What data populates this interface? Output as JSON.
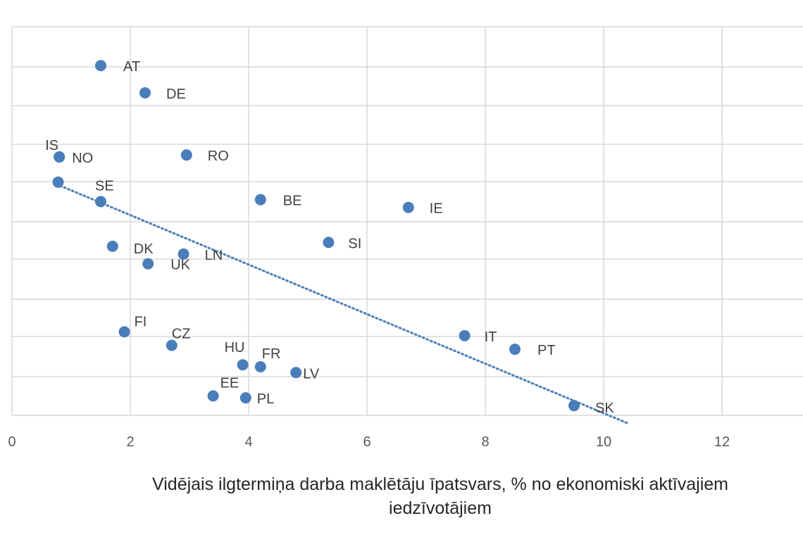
{
  "chart_data": {
    "type": "scatter",
    "title": "",
    "xlabel_line1": "Vidējais ilgtermiņa darba maklētāju īpatsvars, % no ekonomiski aktīvajiem",
    "xlabel_line2": "iedzīvotājiem",
    "ylabel": "",
    "xlim": [
      0,
      13.4
    ],
    "x_ticks": [
      0,
      2,
      4,
      6,
      8,
      10,
      12
    ],
    "grid": "on",
    "legend": "none",
    "point_color": "#4a7ebb",
    "trend_color": "#4a7ebb",
    "trendline": {
      "style": "dotted",
      "x": [
        0.75,
        10.4
      ],
      "y": [
        0.595,
        -0.02
      ]
    },
    "points": [
      {
        "label": "AT",
        "x": 1.5,
        "y": 0.9
      },
      {
        "label": "DE",
        "x": 2.25,
        "y": 0.83
      },
      {
        "label": "IS",
        "x": 0.8,
        "y": 0.665
      },
      {
        "label": "NO",
        "x": 0.8,
        "y": 0.665
      },
      {
        "label": "RO",
        "x": 2.95,
        "y": 0.67
      },
      {
        "label": "",
        "x": 0.78,
        "y": 0.6
      },
      {
        "label": "SE",
        "x": 1.5,
        "y": 0.55
      },
      {
        "label": "BE",
        "x": 4.2,
        "y": 0.555
      },
      {
        "label": "IE",
        "x": 6.7,
        "y": 0.535
      },
      {
        "label": "SI",
        "x": 5.35,
        "y": 0.445
      },
      {
        "label": "DK",
        "x": 1.7,
        "y": 0.435
      },
      {
        "label": "LN",
        "x": 2.9,
        "y": 0.415
      },
      {
        "label": "UK",
        "x": 2.3,
        "y": 0.39
      },
      {
        "label": "FI",
        "x": 1.9,
        "y": 0.215
      },
      {
        "label": "CZ",
        "x": 2.7,
        "y": 0.18
      },
      {
        "label": "IT",
        "x": 7.65,
        "y": 0.205
      },
      {
        "label": "PT",
        "x": 8.5,
        "y": 0.17
      },
      {
        "label": "HU",
        "x": 3.9,
        "y": 0.13
      },
      {
        "label": "FR",
        "x": 4.2,
        "y": 0.125
      },
      {
        "label": "LV",
        "x": 4.8,
        "y": 0.11
      },
      {
        "label": "EE",
        "x": 3.4,
        "y": 0.05
      },
      {
        "label": "PL",
        "x": 3.95,
        "y": 0.045
      },
      {
        "label": "SK",
        "x": 9.5,
        "y": 0.025
      }
    ]
  }
}
